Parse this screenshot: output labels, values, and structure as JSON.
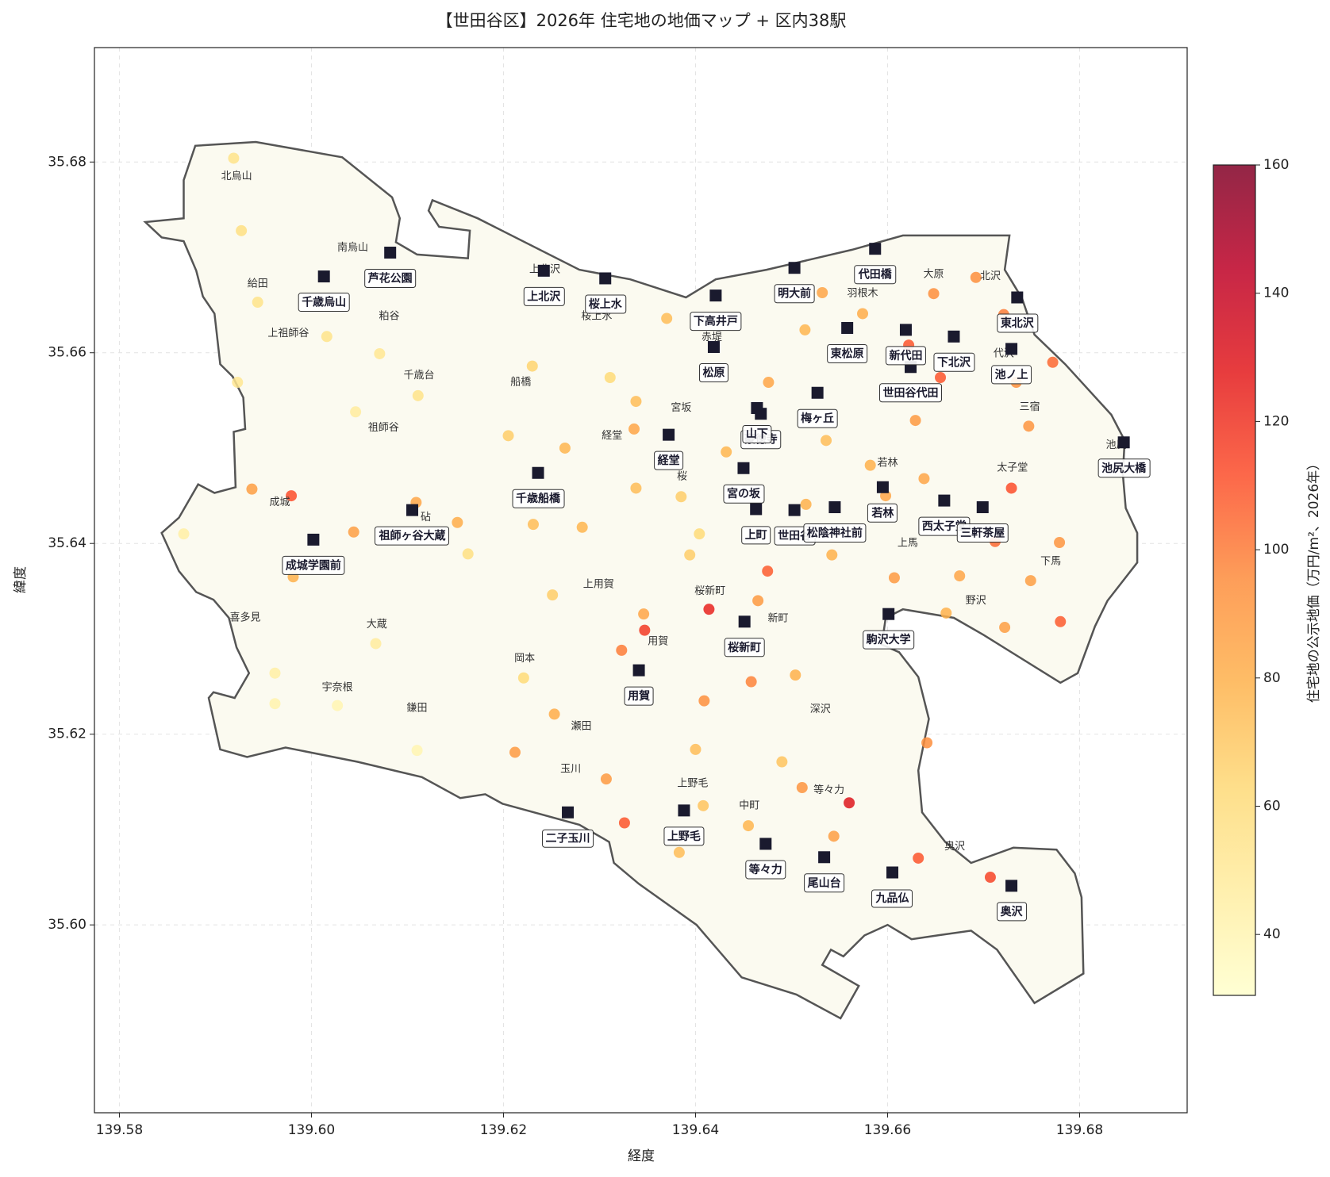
{
  "chart_data": {
    "type": "scatter",
    "title": "【世田谷区】2026年 住宅地の地価マップ + 区内38駅",
    "xlabel": "経度",
    "ylabel": "緯度",
    "xlim": [
      139.5774,
      139.6912
    ],
    "ylim": [
      35.5803,
      35.692
    ],
    "xticks": [
      139.58,
      {
        "value": 139.6,
        "label": "139.60"
      },
      139.62,
      139.64,
      139.66,
      139.68
    ],
    "yticks": [
      {
        "value": 35.6,
        "label": "35.60"
      },
      35.62,
      35.64,
      35.66,
      35.68
    ],
    "grid": true,
    "boundary": {
      "color": "#555555",
      "fill": "#fbfaf0",
      "lon": [
        139.5827,
        139.5867,
        139.5867,
        139.5879,
        139.5942,
        139.6032,
        139.6084,
        139.6092,
        139.6088,
        139.611,
        139.6163,
        139.6165,
        139.6133,
        139.6122,
        139.6126,
        139.6173,
        139.6279,
        139.6332,
        139.639,
        139.6421,
        139.6474,
        139.6563,
        139.6616,
        139.6727,
        139.6722,
        139.674,
        139.6753,
        139.6785,
        139.6833,
        139.6847,
        139.6845,
        139.6848,
        139.686,
        139.686,
        139.6829,
        139.6816,
        139.6798,
        139.678,
        139.67,
        139.6669,
        139.6616,
        139.6598,
        139.6594,
        139.6612,
        139.6632,
        139.6643,
        139.6632,
        139.6636,
        139.666,
        139.6687,
        139.6731,
        139.6776,
        139.6795,
        139.6802,
        139.6804,
        139.6753,
        139.6714,
        139.6687,
        139.6652,
        139.6625,
        139.66,
        139.6576,
        139.6554,
        139.6541,
        139.6532,
        139.657,
        139.6551,
        139.6505,
        139.6448,
        139.6401,
        139.6341,
        139.6315,
        139.631,
        139.6279,
        139.6199,
        139.6181,
        139.6155,
        139.6115,
        139.6048,
        139.5973,
        139.5933,
        139.5905,
        139.5893,
        139.5898,
        139.592,
        139.5935,
        139.5922,
        139.5914,
        139.5898,
        139.588,
        139.5862,
        139.5844,
        139.5862,
        139.5882,
        139.5899,
        139.5921,
        139.5919,
        139.5931,
        139.5929,
        139.5918,
        139.5905,
        139.5899,
        139.5887,
        139.588,
        139.5867,
        139.5844
      ],
      "lat": [
        35.6737,
        35.6741,
        35.6781,
        35.6817,
        35.6821,
        35.6805,
        35.6763,
        35.6741,
        35.6716,
        35.6703,
        35.6699,
        35.6728,
        35.6732,
        35.6749,
        35.676,
        35.6741,
        35.6687,
        35.6677,
        35.6658,
        35.6677,
        35.6687,
        35.6708,
        35.6723,
        35.6723,
        35.6687,
        35.6657,
        35.6619,
        35.6588,
        35.6535,
        35.6508,
        35.6473,
        35.6437,
        35.6411,
        35.638,
        35.634,
        35.6313,
        35.6264,
        35.6254,
        35.6304,
        35.6322,
        35.6331,
        35.6322,
        35.6294,
        35.6286,
        35.626,
        35.6216,
        35.6162,
        35.6118,
        35.6087,
        35.6065,
        35.6081,
        35.6079,
        35.6054,
        35.6029,
        35.5949,
        35.5918,
        35.5974,
        35.5994,
        35.5989,
        35.5985,
        35.6,
        35.5989,
        35.5967,
        35.5974,
        35.5958,
        35.5936,
        35.5902,
        35.5927,
        35.5945,
        35.6,
        35.6043,
        35.6065,
        35.6087,
        35.6105,
        35.6127,
        35.6137,
        35.6133,
        35.6155,
        35.6171,
        35.6186,
        35.6176,
        35.6184,
        35.6238,
        35.6244,
        35.6238,
        35.6264,
        35.6291,
        35.6322,
        35.6341,
        35.6349,
        35.6371,
        35.6411,
        35.6427,
        35.6462,
        35.6453,
        35.6459,
        35.6517,
        35.652,
        35.6553,
        35.6575,
        35.6588,
        35.6641,
        35.6659,
        35.6686,
        35.6717,
        35.6721
      ]
    },
    "points": {
      "lon": [
        139.5919,
        139.5927,
        139.5944,
        139.6016,
        139.6071,
        139.5923,
        139.6111,
        139.6046,
        139.5938,
        139.5979,
        139.6109,
        139.5867,
        139.6044,
        139.6152,
        139.6163,
        139.5981,
        139.6067,
        139.5962,
        139.5962,
        139.6027,
        139.611,
        139.6212,
        139.623,
        139.6205,
        139.6264,
        139.6231,
        139.6282,
        139.6251,
        139.6221,
        139.6253,
        139.6311,
        139.6338,
        139.6336,
        139.6338,
        139.637,
        139.6385,
        139.6404,
        139.6394,
        139.6346,
        139.6347,
        139.6323,
        139.6414,
        139.6465,
        139.6475,
        139.6409,
        139.64,
        139.6458,
        139.6504,
        139.649,
        139.6511,
        139.656,
        139.6544,
        139.6455,
        139.6408,
        139.6383,
        139.6326,
        139.6307,
        139.6432,
        139.6476,
        139.6532,
        139.6514,
        139.6536,
        139.6515,
        139.6542,
        139.6574,
        139.6648,
        139.6692,
        139.6622,
        139.6655,
        139.6629,
        139.6638,
        139.6729,
        139.6747,
        139.6734,
        139.6772,
        139.6721,
        139.6779,
        139.6712,
        139.6749,
        139.6675,
        139.6607,
        139.6661,
        139.6722,
        139.678,
        139.6641,
        139.6632,
        139.6707,
        139.6582,
        139.6598
      ],
      "lat": [
        35.6804,
        35.6728,
        35.6653,
        35.6617,
        35.6599,
        35.6569,
        35.6555,
        35.6538,
        35.6457,
        35.645,
        35.6443,
        35.641,
        35.6412,
        35.6422,
        35.6389,
        35.6365,
        35.6295,
        35.6264,
        35.6232,
        35.623,
        35.6183,
        35.6181,
        35.6586,
        35.6513,
        35.65,
        35.642,
        35.6417,
        35.6346,
        35.6259,
        35.6221,
        35.6574,
        35.6549,
        35.652,
        35.6458,
        35.6636,
        35.6449,
        35.641,
        35.6388,
        35.6326,
        35.6309,
        35.6288,
        35.6331,
        35.634,
        35.6371,
        35.6235,
        35.6184,
        35.6255,
        35.6262,
        35.6171,
        35.6144,
        35.6128,
        35.6093,
        35.6104,
        35.6125,
        35.6076,
        35.6107,
        35.6153,
        35.6496,
        35.6569,
        35.6663,
        35.6624,
        35.6508,
        35.6441,
        35.6388,
        35.6641,
        35.6662,
        35.6679,
        35.6608,
        35.6574,
        35.6529,
        35.6468,
        35.6458,
        35.6523,
        35.6569,
        35.659,
        35.664,
        35.6401,
        35.6402,
        35.6361,
        35.6366,
        35.6364,
        35.6327,
        35.6312,
        35.6318,
        35.6191,
        35.607,
        35.605,
        35.6482,
        35.645
      ],
      "values": [
        55,
        58,
        55,
        55,
        52,
        52,
        55,
        48,
        88,
        112,
        85,
        45,
        88,
        82,
        58,
        80,
        48,
        45,
        42,
        40,
        40,
        90,
        65,
        68,
        78,
        75,
        78,
        68,
        62,
        82,
        62,
        75,
        85,
        75,
        75,
        68,
        62,
        68,
        85,
        118,
        100,
        125,
        90,
        108,
        95,
        75,
        98,
        80,
        72,
        92,
        130,
        88,
        78,
        72,
        75,
        110,
        90,
        78,
        85,
        85,
        78,
        75,
        80,
        80,
        82,
        95,
        95,
        110,
        110,
        90,
        85,
        112,
        92,
        95,
        105,
        100,
        92,
        105,
        88,
        85,
        90,
        80,
        88,
        108,
        95,
        110,
        115,
        80,
        85
      ]
    },
    "areas": [
      {
        "name": "北烏山",
        "lon": 139.5922,
        "lat": 35.6785
      },
      {
        "name": "南烏山",
        "lon": 139.6043,
        "lat": 35.671
      },
      {
        "name": "給田",
        "lon": 139.5944,
        "lat": 35.6672
      },
      {
        "name": "上祖師谷",
        "lon": 139.5976,
        "lat": 35.662
      },
      {
        "name": "粕谷",
        "lon": 139.6081,
        "lat": 35.6638
      },
      {
        "name": "千歳台",
        "lon": 139.6112,
        "lat": 35.6576
      },
      {
        "name": "祖師谷",
        "lon": 139.6075,
        "lat": 35.6521
      },
      {
        "name": "成城",
        "lon": 139.5967,
        "lat": 35.6443
      },
      {
        "name": "砧",
        "lon": 139.6119,
        "lat": 35.6427
      },
      {
        "name": "喜多見",
        "lon": 139.5931,
        "lat": 35.6322
      },
      {
        "name": "大蔵",
        "lon": 139.6068,
        "lat": 35.6315
      },
      {
        "name": "宇奈根",
        "lon": 139.6027,
        "lat": 35.6249
      },
      {
        "name": "鎌田",
        "lon": 139.611,
        "lat": 35.6227
      },
      {
        "name": "上北沢",
        "lon": 139.6243,
        "lat": 35.6687
      },
      {
        "name": "桜上水",
        "lon": 139.6297,
        "lat": 35.6638
      },
      {
        "name": "船橋",
        "lon": 139.6218,
        "lat": 35.6569
      },
      {
        "name": "経堂",
        "lon": 139.6313,
        "lat": 35.6513
      },
      {
        "name": "宮坂",
        "lon": 139.6385,
        "lat": 35.6542
      },
      {
        "name": "桜",
        "lon": 139.6386,
        "lat": 35.647
      },
      {
        "name": "上用賀",
        "lon": 139.6299,
        "lat": 35.6357
      },
      {
        "name": "用賀",
        "lon": 139.6361,
        "lat": 35.6297
      },
      {
        "name": "岡本",
        "lon": 139.6222,
        "lat": 35.6279
      },
      {
        "name": "瀬田",
        "lon": 139.6281,
        "lat": 35.6208
      },
      {
        "name": "玉川",
        "lon": 139.627,
        "lat": 35.6163
      },
      {
        "name": "上野毛",
        "lon": 139.6397,
        "lat": 35.6148
      },
      {
        "name": "中町",
        "lon": 139.6456,
        "lat": 35.6125
      },
      {
        "name": "等々力",
        "lon": 139.6539,
        "lat": 35.6141
      },
      {
        "name": "深沢",
        "lon": 139.653,
        "lat": 35.6226
      },
      {
        "name": "新町",
        "lon": 139.6486,
        "lat": 35.6321
      },
      {
        "name": "桜新町",
        "lon": 139.6415,
        "lat": 35.635
      },
      {
        "name": "赤堤",
        "lon": 139.6417,
        "lat": 35.6616
      },
      {
        "name": "羽根木",
        "lon": 139.6574,
        "lat": 35.6662
      },
      {
        "name": "大原",
        "lon": 139.6648,
        "lat": 35.6682
      },
      {
        "name": "北沢",
        "lon": 139.6707,
        "lat": 35.668
      },
      {
        "name": "代沢",
        "lon": 139.6721,
        "lat": 35.6599
      },
      {
        "name": "三宿",
        "lon": 139.6748,
        "lat": 35.6543
      },
      {
        "name": "池尻",
        "lon": 139.6838,
        "lat": 35.6503
      },
      {
        "name": "太子堂",
        "lon": 139.673,
        "lat": 35.6479
      },
      {
        "name": "若林",
        "lon": 139.66,
        "lat": 35.6484
      },
      {
        "name": "上馬",
        "lon": 139.6621,
        "lat": 35.64
      },
      {
        "name": "下馬",
        "lon": 139.677,
        "lat": 35.6381
      },
      {
        "name": "野沢",
        "lon": 139.6692,
        "lat": 35.634
      },
      {
        "name": "奥沢",
        "lon": 139.667,
        "lat": 35.6082
      }
    ],
    "stations_color": "#1a1a2e",
    "stations": [
      {
        "name": "芦花公園",
        "lon": 139.6082,
        "lat": 35.6705
      },
      {
        "name": "千歳烏山",
        "lon": 139.6013,
        "lat": 35.668
      },
      {
        "name": "上北沢",
        "lon": 139.6242,
        "lat": 35.6686
      },
      {
        "name": "桜上水",
        "lon": 139.6306,
        "lat": 35.6678
      },
      {
        "name": "下高井戸",
        "lon": 139.6421,
        "lat": 35.666
      },
      {
        "name": "明大前",
        "lon": 139.6503,
        "lat": 35.6689
      },
      {
        "name": "代田橋",
        "lon": 139.6587,
        "lat": 35.6709
      },
      {
        "name": "東北沢",
        "lon": 139.6735,
        "lat": 35.6658
      },
      {
        "name": "東松原",
        "lon": 139.6558,
        "lat": 35.6626
      },
      {
        "name": "新代田",
        "lon": 139.6619,
        "lat": 35.6624
      },
      {
        "name": "下北沢",
        "lon": 139.6669,
        "lat": 35.6617
      },
      {
        "name": "池ノ上",
        "lon": 139.6729,
        "lat": 35.6604
      },
      {
        "name": "世田谷代田",
        "lon": 139.6624,
        "lat": 35.6585
      },
      {
        "name": "松原",
        "lon": 139.6419,
        "lat": 35.6606
      },
      {
        "name": "梅ヶ丘",
        "lon": 139.6527,
        "lat": 35.6558
      },
      {
        "name": "豪徳寺",
        "lon": 139.6468,
        "lat": 35.6536
      },
      {
        "name": "山下",
        "lon": 139.6464,
        "lat": 35.6542
      },
      {
        "name": "経堂",
        "lon": 139.6372,
        "lat": 35.6514
      },
      {
        "name": "池尻大橋",
        "lon": 139.6846,
        "lat": 35.6506
      },
      {
        "name": "千歳船橋",
        "lon": 139.6236,
        "lat": 35.6474
      },
      {
        "name": "宮の坂",
        "lon": 139.645,
        "lat": 35.6479
      },
      {
        "name": "若林",
        "lon": 139.6595,
        "lat": 35.6459
      },
      {
        "name": "西太子堂",
        "lon": 139.6659,
        "lat": 35.6445
      },
      {
        "name": "三軒茶屋",
        "lon": 139.6699,
        "lat": 35.6438
      },
      {
        "name": "世田谷",
        "lon": 139.6503,
        "lat": 35.6435
      },
      {
        "name": "松陰神社前",
        "lon": 139.6545,
        "lat": 35.6438
      },
      {
        "name": "上町",
        "lon": 139.6463,
        "lat": 35.6436
      },
      {
        "name": "祖師ヶ谷大蔵",
        "lon": 139.6105,
        "lat": 35.6435
      },
      {
        "name": "成城学園前",
        "lon": 139.6002,
        "lat": 35.6404
      },
      {
        "name": "駒沢大学",
        "lon": 139.6601,
        "lat": 35.6326
      },
      {
        "name": "桜新町",
        "lon": 139.6451,
        "lat": 35.6318
      },
      {
        "name": "用賀",
        "lon": 139.6341,
        "lat": 35.6267
      },
      {
        "name": "二子玉川",
        "lon": 139.6267,
        "lat": 35.6118
      },
      {
        "name": "上野毛",
        "lon": 139.6388,
        "lat": 35.612
      },
      {
        "name": "等々力",
        "lon": 139.6473,
        "lat": 35.6085
      },
      {
        "name": "尾山台",
        "lon": 139.6534,
        "lat": 35.6071
      },
      {
        "name": "九品仏",
        "lon": 139.6605,
        "lat": 35.6055
      },
      {
        "name": "奥沢",
        "lon": 139.6729,
        "lat": 35.6041
      }
    ],
    "colorbar": {
      "label": "住宅地の公示地価（万円/m²、2026年）",
      "lim": [
        30.5,
        160
      ],
      "ticks": [
        40,
        60,
        80,
        100,
        120,
        140,
        160
      ],
      "colormap": [
        "#ffffcc",
        "#ffeda0",
        "#fed976",
        "#feb24c",
        "#fd8d3c",
        "#fc4e2a",
        "#e31a1c",
        "#bd0026",
        "#800026"
      ],
      "alpha": 0.85
    }
  }
}
